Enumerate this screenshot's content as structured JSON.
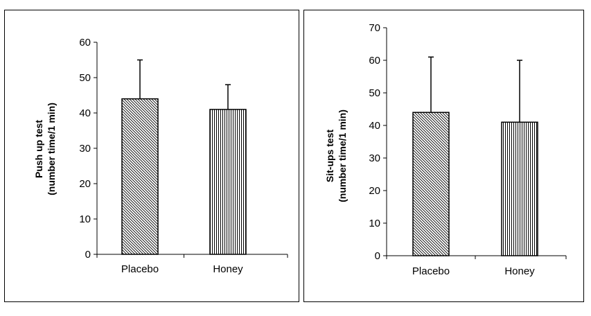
{
  "chart_data": [
    {
      "type": "bar",
      "categories": [
        "Placebo",
        "Honey"
      ],
      "values": [
        44,
        41
      ],
      "errors": [
        11,
        7
      ],
      "patterns": [
        "diagonal",
        "vertical"
      ],
      "ylabel_line1": "Push up test",
      "ylabel_line2": "(number time/1 min)",
      "xlabel": "",
      "ylim": [
        0,
        60
      ],
      "yticks": [
        0,
        10,
        20,
        30,
        40,
        50,
        60
      ],
      "grid": false
    },
    {
      "type": "bar",
      "categories": [
        "Placebo",
        "Honey"
      ],
      "values": [
        44,
        41
      ],
      "errors": [
        17,
        19
      ],
      "patterns": [
        "diagonal",
        "vertical"
      ],
      "ylabel_line1": "Sit-ups test",
      "ylabel_line2": "(number time/1 min)",
      "xlabel": "",
      "ylim": [
        0,
        70
      ],
      "yticks": [
        0,
        10,
        20,
        30,
        40,
        50,
        60,
        70
      ],
      "grid": false
    }
  ]
}
